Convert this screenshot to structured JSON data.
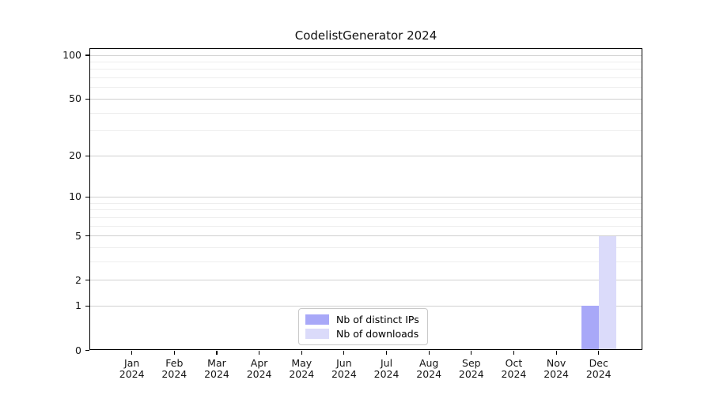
{
  "chart_data": {
    "type": "bar",
    "title": "CodelistGenerator 2024",
    "categories": [
      {
        "month": "Jan",
        "year": "2024"
      },
      {
        "month": "Feb",
        "year": "2024"
      },
      {
        "month": "Mar",
        "year": "2024"
      },
      {
        "month": "Apr",
        "year": "2024"
      },
      {
        "month": "May",
        "year": "2024"
      },
      {
        "month": "Jun",
        "year": "2024"
      },
      {
        "month": "Jul",
        "year": "2024"
      },
      {
        "month": "Aug",
        "year": "2024"
      },
      {
        "month": "Sep",
        "year": "2024"
      },
      {
        "month": "Oct",
        "year": "2024"
      },
      {
        "month": "Nov",
        "year": "2024"
      },
      {
        "month": "Dec",
        "year": "2024"
      }
    ],
    "series": [
      {
        "name": "Nb of distinct IPs",
        "color": "#a8a8f8",
        "values": [
          0,
          0,
          0,
          0,
          0,
          0,
          0,
          0,
          0,
          0,
          0,
          1
        ]
      },
      {
        "name": "Nb of downloads",
        "color": "#dbdbfa",
        "values": [
          0,
          0,
          0,
          0,
          0,
          0,
          0,
          0,
          0,
          0,
          0,
          5
        ]
      }
    ],
    "y_axis": {
      "scale": "log1p",
      "major_ticks": [
        0,
        1,
        2,
        5,
        10,
        20,
        50,
        100
      ],
      "minor_gridlines": [
        3,
        4,
        6,
        7,
        8,
        9,
        30,
        40,
        60,
        70,
        80,
        90
      ],
      "ylim": [
        0,
        112
      ]
    },
    "xlabel": "",
    "ylabel": "",
    "grid": "horizontal",
    "legend_position": "bottom-center-inside",
    "colors": {
      "major_grid": "#d0d0d0",
      "minor_grid": "#eeeeee",
      "frame": "#000000",
      "text": "#141414",
      "legend_border": "#c9c9c9",
      "background": "#ffffff"
    }
  }
}
